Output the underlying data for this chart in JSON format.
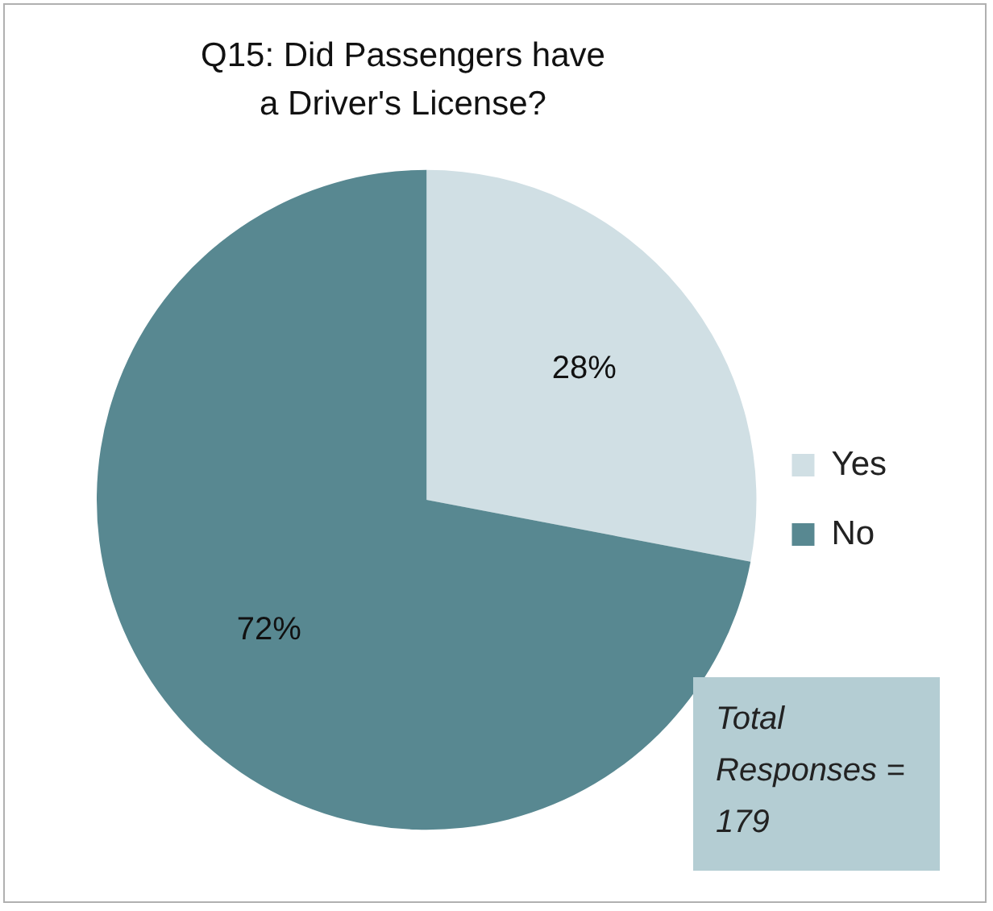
{
  "chart_data": {
    "type": "pie",
    "title": "Q15: Did Passengers have a Driver's License?",
    "categories": [
      "Yes",
      "No"
    ],
    "values": [
      28,
      72
    ],
    "colors": [
      "#d0dfe4",
      "#588891"
    ],
    "value_labels": [
      "28%",
      "72%"
    ],
    "legend": "right",
    "annotations": [
      "Total Responses = 179"
    ]
  }
}
